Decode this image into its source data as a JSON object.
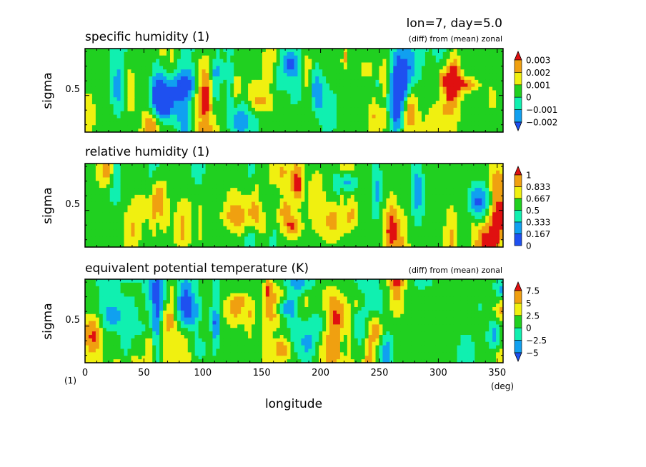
{
  "figure": {
    "run_label": "lon=7, day=5.0",
    "x_axis": {
      "label": "longitude",
      "unit": "(deg)",
      "range": [
        0,
        355
      ],
      "ticks": [
        0,
        50,
        100,
        150,
        200,
        250,
        300,
        350
      ]
    },
    "bottom_left_unit": "(1)"
  },
  "chart_data": [
    {
      "type": "heatmap",
      "title": "specific humidity (1)",
      "note": "(diff) from (mean) zonal",
      "xlabel": "longitude",
      "ylabel": "sigma",
      "xlim": [
        0,
        355
      ],
      "ylim": [
        0.25,
        0.82
      ],
      "yticks": [
        0.5
      ],
      "levels": [
        -0.002,
        -0.001,
        0,
        0.001,
        0.002,
        0.003
      ],
      "level_labels": [
        "0.003",
        "0.002",
        "0.001",
        "0",
        "−0.001",
        "−0.002"
      ],
      "colors": [
        "#1e50f0",
        "#10a0f0",
        "#10f0b0",
        "#20d020",
        "#f0f010",
        "#f0a010",
        "#e01010"
      ],
      "extend": "both"
    },
    {
      "type": "heatmap",
      "title": "relative humidity (1)",
      "note": "",
      "xlabel": "longitude",
      "ylabel": "sigma",
      "xlim": [
        0,
        355
      ],
      "ylim": [
        0.25,
        0.82
      ],
      "yticks": [
        0.5
      ],
      "levels": [
        0,
        0.167,
        0.333,
        0.5,
        0.667,
        0.833,
        1
      ],
      "level_labels": [
        "1",
        "0.833",
        "0.667",
        "0.5",
        "0.333",
        "0.167",
        "0"
      ],
      "colors": [
        "#1e50f0",
        "#10a0f0",
        "#10f0b0",
        "#20d020",
        "#f0f010",
        "#f0a010",
        "#e01010"
      ],
      "extend": "max"
    },
    {
      "type": "heatmap",
      "title": "equivalent potential temperature (K)",
      "note": "(diff) from (mean) zonal",
      "xlabel": "longitude",
      "ylabel": "sigma",
      "xlim": [
        0,
        355
      ],
      "ylim": [
        0.25,
        0.82
      ],
      "yticks": [
        0.5
      ],
      "levels": [
        -5,
        -2.5,
        0,
        2.5,
        5,
        7.5
      ],
      "level_labels": [
        "7.5",
        "5",
        "2.5",
        "0",
        "−2.5",
        "−5"
      ],
      "colors": [
        "#1e50f0",
        "#10a0f0",
        "#10f0b0",
        "#20d020",
        "#f0f010",
        "#f0a010",
        "#e01010"
      ],
      "extend": "both"
    }
  ]
}
